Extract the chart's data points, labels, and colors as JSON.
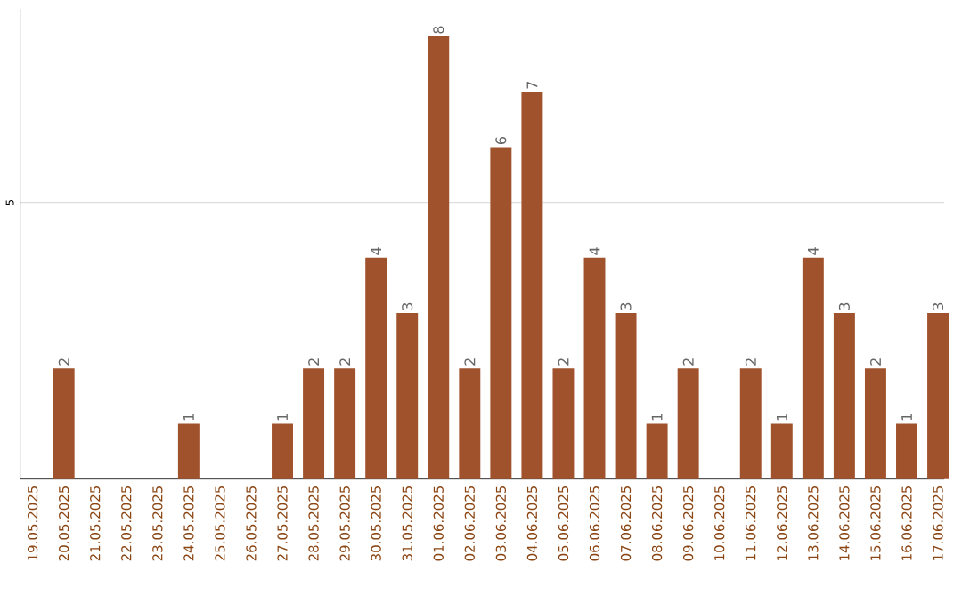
{
  "chart_data": {
    "type": "bar",
    "categories": [
      "19.05.2025",
      "20.05.2025",
      "21.05.2025",
      "22.05.2025",
      "23.05.2025",
      "24.05.2025",
      "25.05.2025",
      "26.05.2025",
      "27.05.2025",
      "28.05.2025",
      "29.05.2025",
      "30.05.2025",
      "31.05.2025",
      "01.06.2025",
      "02.06.2025",
      "03.06.2025",
      "04.06.2025",
      "05.06.2025",
      "06.06.2025",
      "07.06.2025",
      "08.06.2025",
      "09.06.2025",
      "10.06.2025",
      "11.06.2025",
      "12.06.2025",
      "13.06.2025",
      "14.06.2025",
      "15.06.2025",
      "16.06.2025",
      "17.06.2025"
    ],
    "values": [
      0,
      2,
      0,
      0,
      0,
      1,
      0,
      0,
      1,
      2,
      2,
      4,
      3,
      8,
      2,
      6,
      7,
      2,
      4,
      3,
      1,
      2,
      0,
      2,
      1,
      4,
      3,
      2,
      1,
      3
    ],
    "value_labels": [
      null,
      "2",
      null,
      null,
      null,
      "1",
      null,
      null,
      "1",
      "2",
      "2",
      "4",
      "3",
      "8",
      "2",
      "6",
      "7",
      "2",
      "4",
      "3",
      "1",
      "2",
      null,
      "2",
      "1",
      "4",
      "3",
      "2",
      "1",
      "3"
    ],
    "color": "#a0522d",
    "ylim": [
      0,
      8.5
    ],
    "yticks": [
      5
    ],
    "grid": "y"
  }
}
